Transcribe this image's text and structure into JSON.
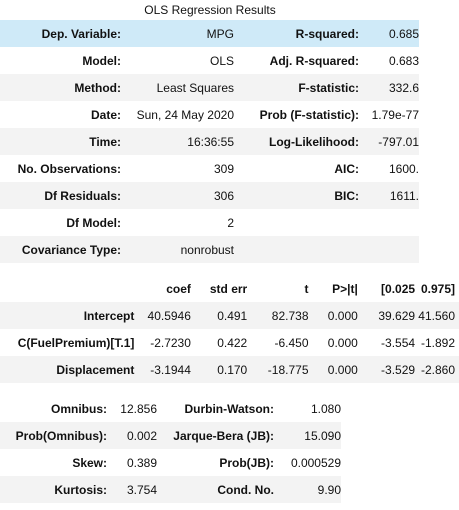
{
  "caption": "OLS Regression Results",
  "summary": [
    {
      "l1": "Dep. Variable:",
      "v1": "MPG",
      "l2": "R-squared:",
      "v2": "0.685"
    },
    {
      "l1": "Model:",
      "v1": "OLS",
      "l2": "Adj. R-squared:",
      "v2": "0.683"
    },
    {
      "l1": "Method:",
      "v1": "Least Squares",
      "l2": "F-statistic:",
      "v2": "332.6"
    },
    {
      "l1": "Date:",
      "v1": "Sun, 24 May 2020",
      "l2": "Prob (F-statistic):",
      "v2": "1.79e-77"
    },
    {
      "l1": "Time:",
      "v1": "16:36:55",
      "l2": "Log-Likelihood:",
      "v2": "-797.01"
    },
    {
      "l1": "No. Observations:",
      "v1": "309",
      "l2": "AIC:",
      "v2": "1600."
    },
    {
      "l1": "Df Residuals:",
      "v1": "306",
      "l2": "BIC:",
      "v2": "1611."
    },
    {
      "l1": "Df Model:",
      "v1": "2",
      "l2": "",
      "v2": ""
    },
    {
      "l1": "Covariance Type:",
      "v1": "nonrobust",
      "l2": "",
      "v2": ""
    }
  ],
  "coef_table": {
    "headers": [
      "",
      "coef",
      "std err",
      "t",
      "P>|t|",
      "[0.025",
      "0.975]"
    ],
    "rows": [
      [
        "Intercept",
        "40.5946",
        "0.491",
        "82.738",
        "0.000",
        "39.629",
        "41.560"
      ],
      [
        "C(FuelPremium)[T.1]",
        "-2.7230",
        "0.422",
        "-6.450",
        "0.000",
        "-3.554",
        "-1.892"
      ],
      [
        "Displacement",
        "-3.1944",
        "0.170",
        "-18.775",
        "0.000",
        "-3.529",
        "-2.860"
      ]
    ]
  },
  "diagnostics": [
    {
      "l1": "Omnibus:",
      "v1": "12.856",
      "l2": "Durbin-Watson:",
      "v2": "1.080"
    },
    {
      "l1": "Prob(Omnibus):",
      "v1": "0.002",
      "l2": "Jarque-Bera (JB):",
      "v2": "15.090"
    },
    {
      "l1": "Skew:",
      "v1": "0.389",
      "l2": "Prob(JB):",
      "v2": "0.000529"
    },
    {
      "l1": "Kurtosis:",
      "v1": "3.754",
      "l2": "Cond. No.",
      "v2": "9.90"
    }
  ]
}
